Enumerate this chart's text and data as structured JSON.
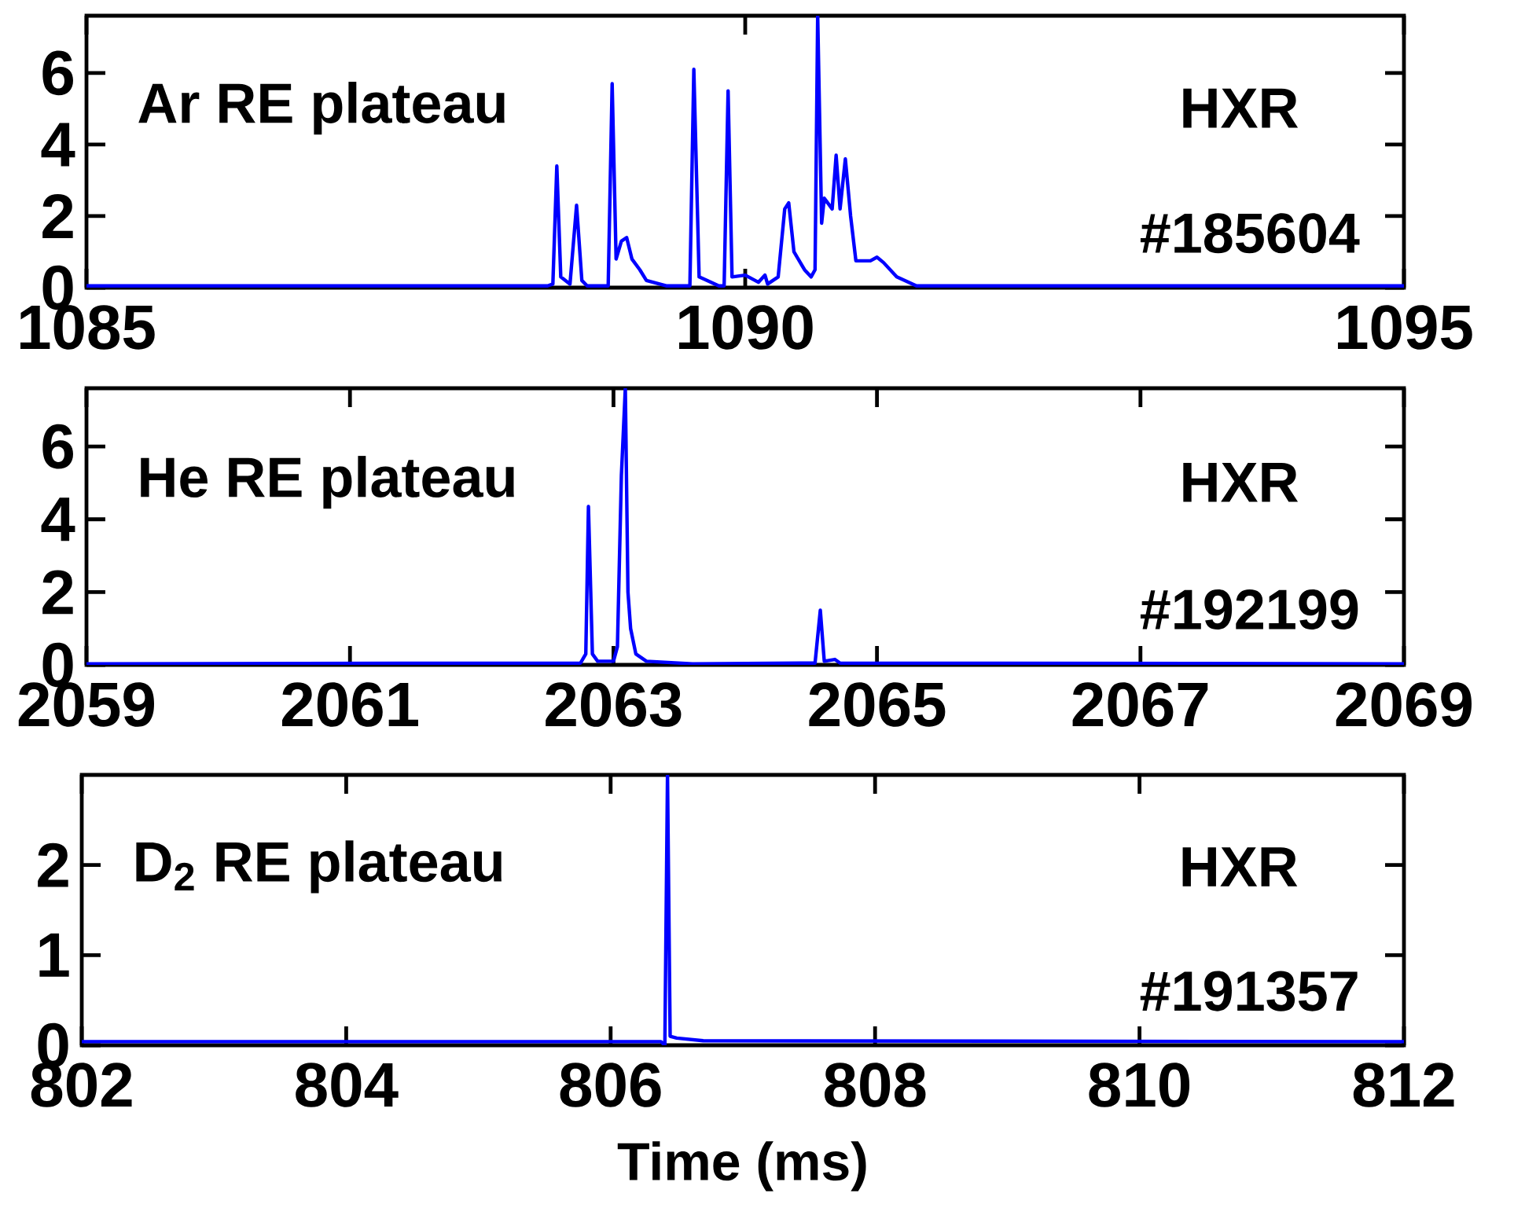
{
  "chart_data": [
    {
      "type": "line",
      "annotations": [
        "Ar RE plateau",
        "HXR",
        "#185604"
      ],
      "xlim": [
        1085,
        1095
      ],
      "ylim": [
        0,
        7.6
      ],
      "xticks": [
        1085,
        1090,
        1095
      ],
      "yticks": [
        0,
        2,
        4,
        6
      ],
      "series": [
        {
          "color": "#0000ff",
          "x": [
            1085,
            1088.5,
            1088.54,
            1088.57,
            1088.6,
            1088.67,
            1088.72,
            1088.76,
            1088.8,
            1088.96,
            1088.99,
            1089.02,
            1089.06,
            1089.1,
            1089.14,
            1089.2,
            1089.25,
            1089.4,
            1089.58,
            1089.61,
            1089.65,
            1089.8,
            1089.84,
            1089.87,
            1089.9,
            1090.0,
            1090.1,
            1090.15,
            1090.17,
            1090.25,
            1090.3,
            1090.33,
            1090.37,
            1090.45,
            1090.5,
            1090.53,
            1090.55,
            1090.58,
            1090.6,
            1090.66,
            1090.69,
            1090.72,
            1090.76,
            1090.8,
            1090.84,
            1090.95,
            1091.0,
            1091.05,
            1091.15,
            1091.3,
            1095
          ],
          "values": [
            0.05,
            0.05,
            0.1,
            3.4,
            0.3,
            0.1,
            2.3,
            0.2,
            0.05,
            0.05,
            5.7,
            0.8,
            1.3,
            1.4,
            0.8,
            0.5,
            0.2,
            0.05,
            0.05,
            6.1,
            0.3,
            0.05,
            0.05,
            5.5,
            0.3,
            0.35,
            0.15,
            0.35,
            0.1,
            0.3,
            2.2,
            2.37,
            1.0,
            0.5,
            0.3,
            0.5,
            7.6,
            1.8,
            2.5,
            2.2,
            3.7,
            2.2,
            3.6,
            2.0,
            0.75,
            0.75,
            0.85,
            0.7,
            0.3,
            0.05,
            0.05
          ]
        }
      ]
    },
    {
      "type": "line",
      "annotations": [
        "He RE plateau",
        "HXR",
        "#192199"
      ],
      "xlim": [
        2059,
        2069
      ],
      "ylim": [
        0,
        7.6
      ],
      "xticks": [
        2059,
        2061,
        2063,
        2065,
        2067,
        2069
      ],
      "yticks": [
        0,
        2,
        4,
        6
      ],
      "series": [
        {
          "color": "#0000ff",
          "x": [
            2059,
            2062.75,
            2062.79,
            2062.81,
            2062.84,
            2062.88,
            2063.0,
            2063.03,
            2063.06,
            2063.09,
            2063.11,
            2063.13,
            2063.17,
            2063.25,
            2063.6,
            2064.53,
            2064.57,
            2064.6,
            2064.68,
            2064.72,
            2069
          ],
          "values": [
            0.03,
            0.05,
            0.3,
            4.35,
            0.3,
            0.1,
            0.1,
            0.5,
            5.2,
            7.6,
            2.0,
            1.0,
            0.3,
            0.1,
            0.03,
            0.05,
            1.5,
            0.1,
            0.15,
            0.05,
            0.03
          ]
        }
      ]
    },
    {
      "type": "line",
      "annotations": [
        "D$_{2}$ RE plateau",
        "HXR",
        "#191357"
      ],
      "xlabel": "Time (ms)",
      "xlim": [
        802,
        812
      ],
      "ylim": [
        0,
        3
      ],
      "xticks": [
        802,
        804,
        806,
        808,
        810,
        812
      ],
      "yticks": [
        0,
        1,
        2
      ],
      "series": [
        {
          "color": "#0000ff",
          "x": [
            802,
            806.38,
            806.41,
            806.43,
            806.45,
            806.5,
            806.7,
            812
          ],
          "values": [
            0.04,
            0.04,
            0.0,
            3.0,
            0.1,
            0.08,
            0.05,
            0.04
          ]
        }
      ]
    }
  ]
}
